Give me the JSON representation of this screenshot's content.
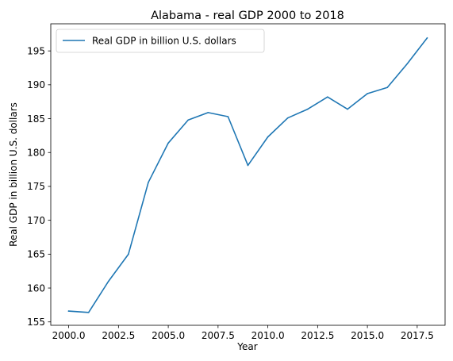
{
  "chart_data": {
    "type": "line",
    "title": "Alabama - real GDP 2000 to 2018",
    "xlabel": "Year",
    "ylabel": "Real GDP in billion U.S. dollars",
    "xlim": [
      1999.1,
      2018.9
    ],
    "ylim": [
      154.5,
      199.0
    ],
    "xticks": [
      2000.0,
      2002.5,
      2005.0,
      2007.5,
      2010.0,
      2012.5,
      2015.0,
      2017.5
    ],
    "xtick_labels": [
      "2000.0",
      "2002.5",
      "2005.0",
      "2007.5",
      "2010.0",
      "2012.5",
      "2015.0",
      "2017.5"
    ],
    "yticks": [
      155,
      160,
      165,
      170,
      175,
      180,
      185,
      190,
      195
    ],
    "ytick_labels": [
      "155",
      "160",
      "165",
      "170",
      "175",
      "180",
      "185",
      "190",
      "195"
    ],
    "grid": false,
    "legend_position": "upper left",
    "series": [
      {
        "name": "Real GDP in billion U.S. dollars",
        "color": "#1f77b4",
        "x": [
          2000,
          2001,
          2002,
          2003,
          2004,
          2005,
          2006,
          2007,
          2008,
          2009,
          2010,
          2011,
          2012,
          2013,
          2014,
          2015,
          2016,
          2017,
          2018
        ],
        "values": [
          156.6,
          156.4,
          161.0,
          165.0,
          175.6,
          181.4,
          184.8,
          185.9,
          185.3,
          178.1,
          182.3,
          185.1,
          186.4,
          188.2,
          186.4,
          188.7,
          189.6,
          193.1,
          196.9
        ]
      }
    ]
  }
}
